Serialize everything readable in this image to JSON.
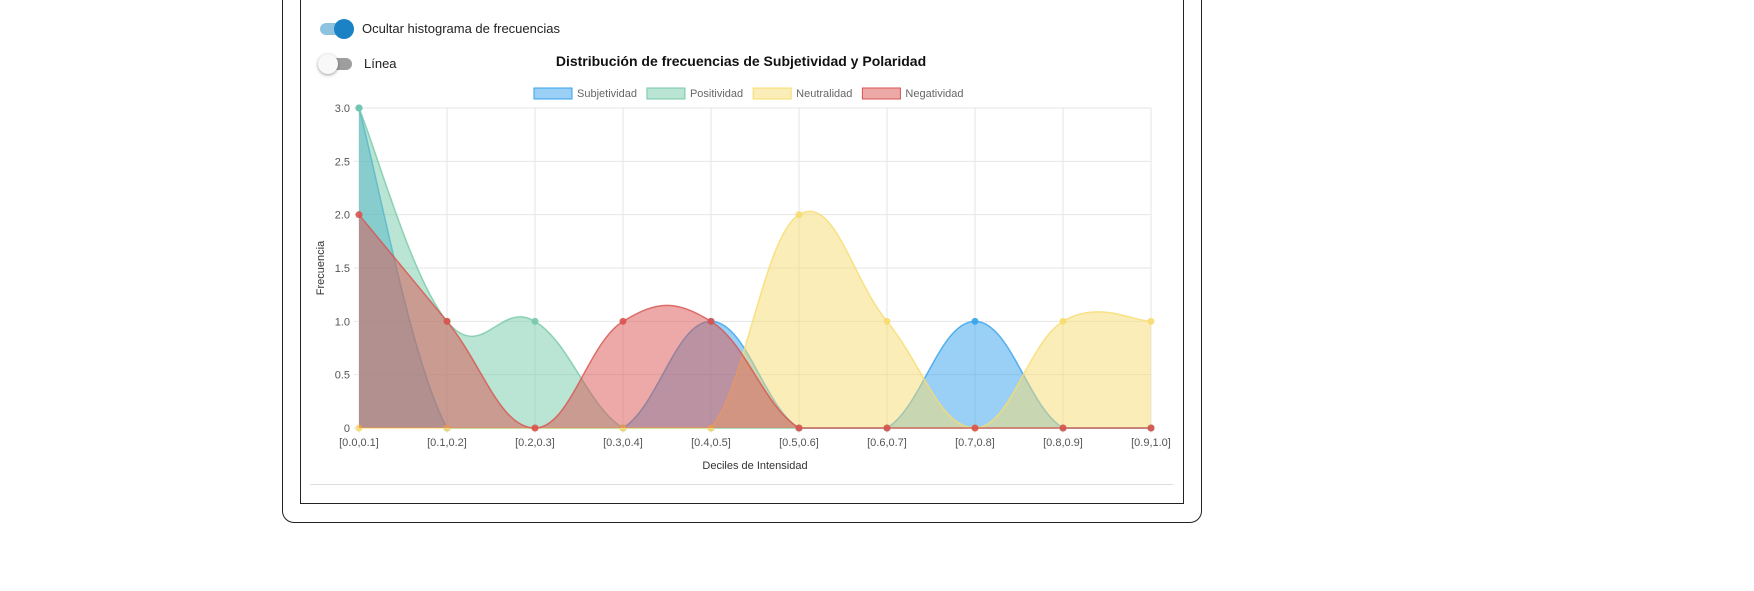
{
  "controls": {
    "hide_histogram_label": "Ocultar histograma de frecuencias",
    "hide_histogram_on": true,
    "line_label": "Línea",
    "line_on": false
  },
  "chart_data": {
    "type": "area",
    "title": "Distribución de frecuencias de Subjetividad y Polaridad",
    "xlabel": "Deciles de Intensidad",
    "ylabel": "Frecuencia",
    "categories": [
      "[0.0,0.1]",
      "[0.1,0.2]",
      "[0.2,0.3]",
      "[0.3,0.4]",
      "[0.4,0.5]",
      "[0.5,0.6]",
      "[0.6,0.7]",
      "[0.7,0.8]",
      "[0.8,0.9]",
      "[0.9,1.0]"
    ],
    "ylim": [
      0,
      3
    ],
    "yticks": [
      "0",
      "0.5",
      "1.0",
      "1.5",
      "2.0",
      "2.5",
      "3.0"
    ],
    "legend_position": "top",
    "series": [
      {
        "name": "Subjetividad",
        "values": [
          3,
          0,
          0,
          0,
          1,
          0,
          0,
          1,
          0,
          0
        ],
        "color": "#36a2eb"
      },
      {
        "name": "Positividad",
        "values": [
          3,
          1,
          1,
          0,
          0,
          0,
          0,
          0,
          0,
          0
        ],
        "color": "#75c9a8"
      },
      {
        "name": "Neutralidad",
        "values": [
          0,
          0,
          0,
          0,
          0,
          2,
          1,
          0,
          1,
          1
        ],
        "color": "#f7dc6f"
      },
      {
        "name": "Negatividad",
        "values": [
          2,
          1,
          0,
          1,
          1,
          0,
          0,
          0,
          0,
          0
        ],
        "color": "#d9534f"
      }
    ]
  }
}
